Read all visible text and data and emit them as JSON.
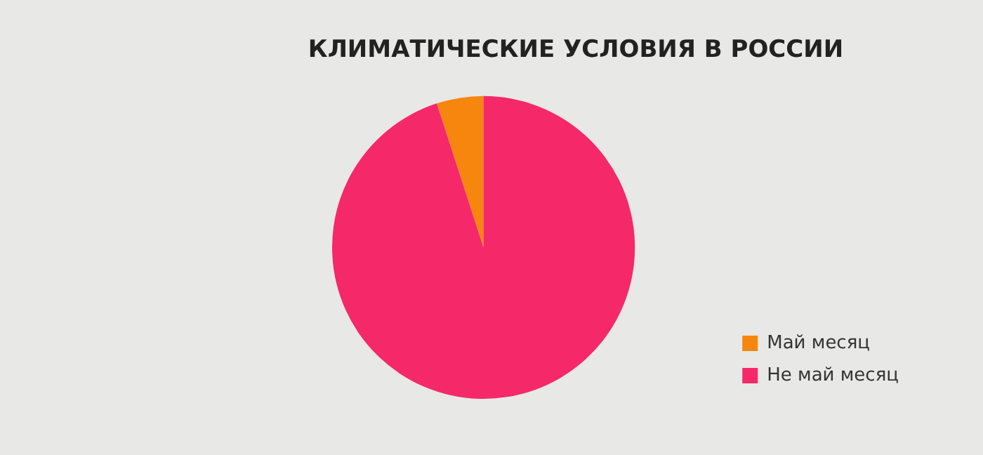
{
  "chart_data": {
    "type": "pie",
    "title": "КЛИМАТИЧЕСКИЕ УСЛОВИЯ В РОССИИ",
    "categories": [
      "Май месяц",
      "Не май месяц"
    ],
    "values": [
      5,
      95
    ],
    "colors": [
      "#f7860f",
      "#f5286a"
    ],
    "legend": "bottom right"
  }
}
